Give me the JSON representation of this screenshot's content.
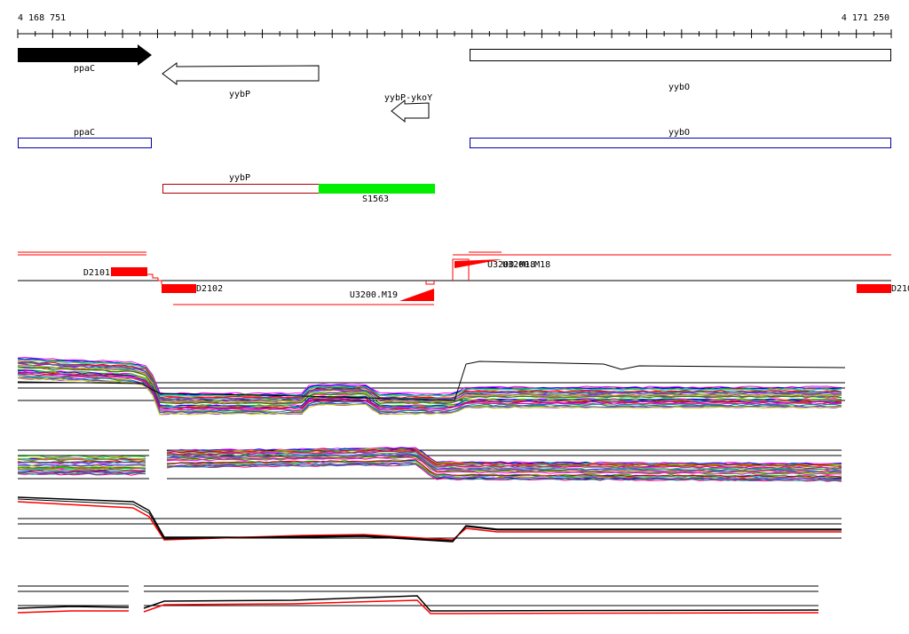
{
  "ruler": {
    "start_label": "4 168 751",
    "end_label": "4 171 250"
  },
  "genes": {
    "ppaC": "ppaC",
    "yybP": "yybP",
    "yybP_ykoY": "yybP-ykoY",
    "yybO": "yybO"
  },
  "annotations": {
    "ppaC": "ppaC",
    "yybO": "yybO",
    "yybP": "yybP",
    "S1563": "S1563"
  },
  "segments": {
    "D2101": "D2101",
    "D2102": "D2102",
    "D210x": "D210",
    "U3200_M19": "U3200.M19",
    "U3200_overlap": "U3200.M18"
  },
  "colors": {
    "gene_fill": "#000000",
    "annotation_blue": "#0000aa",
    "annotation_red": "#aa0000",
    "segment_red": "#ff0000",
    "s1563_green": "#00ee00"
  }
}
